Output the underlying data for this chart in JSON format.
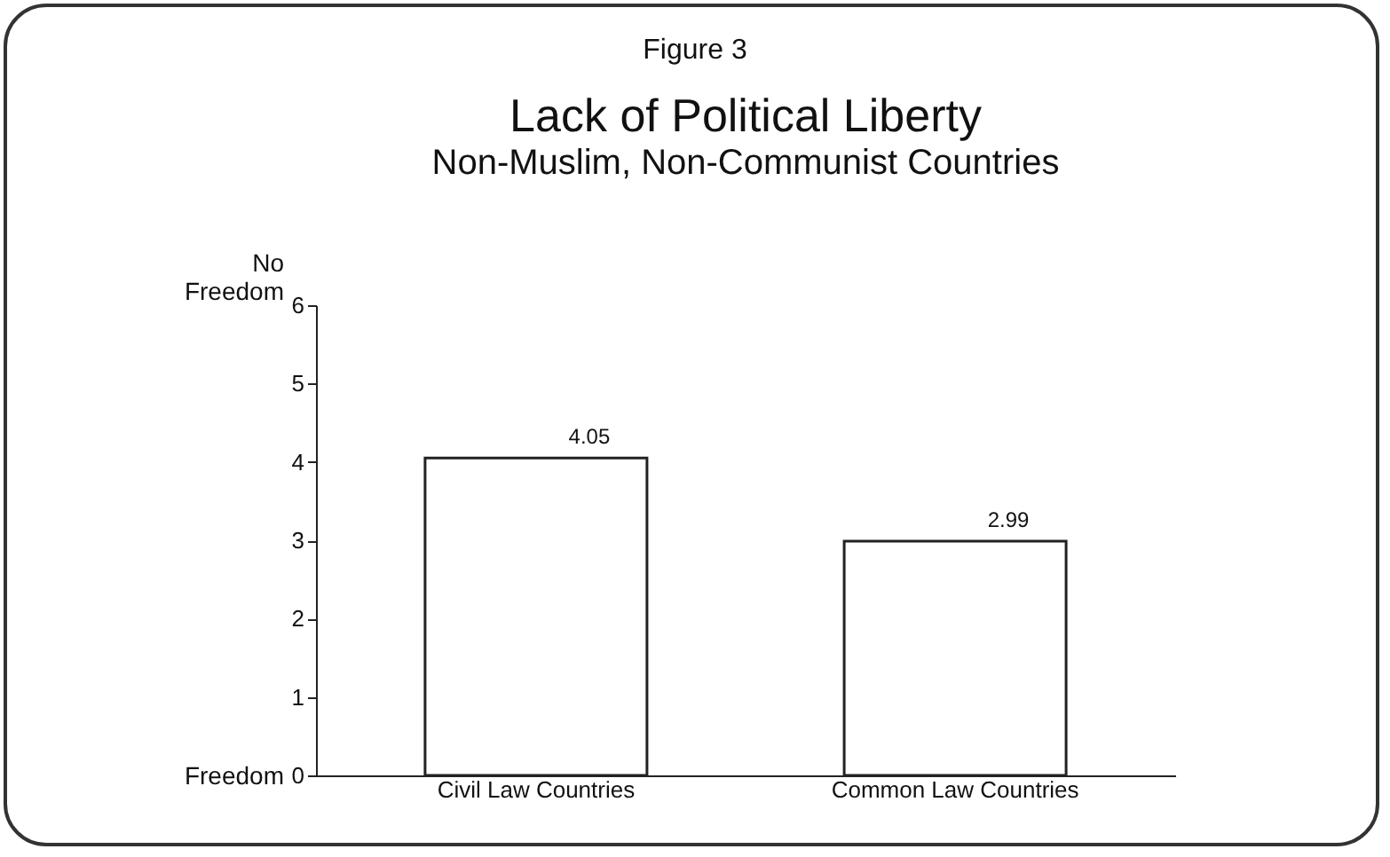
{
  "chart_data": {
    "type": "bar",
    "title": "Lack of Political Liberty",
    "subtitle": "Non-Muslim, Non-Communist Countries",
    "annotations": [
      "Figure 3",
      "No\nFreedom",
      "Freedom"
    ],
    "categories": [
      "Civil Law Countries",
      "Common Law Countries"
    ],
    "values": [
      4.05,
      2.99
    ],
    "color": "#ffffff",
    "ylim": [
      0,
      6
    ],
    "yticks": [
      0,
      1,
      2,
      3,
      4,
      5,
      6
    ],
    "data_labels": true,
    "grid": false
  }
}
